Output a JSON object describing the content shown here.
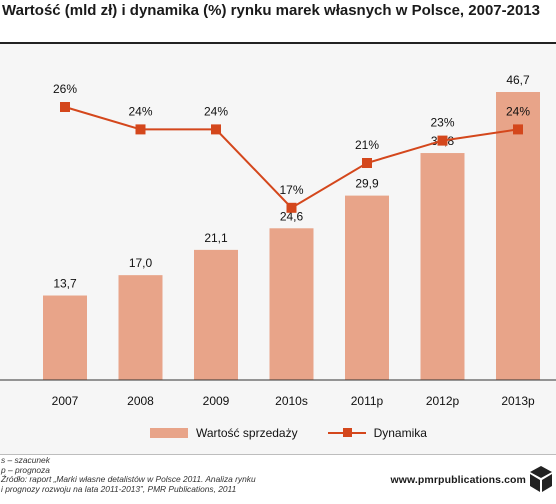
{
  "title": "Wartość (mld zł) i dynamika (%) rynku marek własnych w Polsce, 2007-2013",
  "chart_data": {
    "type": "bar+line",
    "categories": [
      "2007",
      "2008",
      "2009",
      "2010s",
      "2011p",
      "2012p",
      "2013p"
    ],
    "series": [
      {
        "name": "Wartość sprzedaży",
        "type": "bar",
        "values": [
          13.7,
          17.0,
          21.1,
          24.6,
          29.9,
          36.8,
          46.7
        ],
        "labels": [
          "13,7",
          "17,0",
          "21,1",
          "24,6",
          "29,9",
          "36,8",
          "46,7"
        ]
      },
      {
        "name": "Dynamika",
        "type": "line",
        "values": [
          26,
          24,
          24,
          17,
          21,
          23,
          24
        ],
        "labels": [
          "26%",
          "24%",
          "24%",
          "17%",
          "21%",
          "23%",
          "24%"
        ]
      }
    ],
    "grid": false,
    "legend_position": "bottom"
  },
  "colors": {
    "bar": "#e8a489",
    "line": "#d4471c",
    "plot_background": "#f6f6f6",
    "axis": "#333333"
  },
  "notes": [
    "s – szacunek",
    "p – prognoza",
    "Źródło: raport „Marki własne detalistów w Polsce 2011. Analiza rynku",
    "i prognozy rozwoju na lata 2011-2013”, PMR Publications, 2011"
  ],
  "website": "www.pmrpublications.com",
  "logo_icon": "cube-icon"
}
